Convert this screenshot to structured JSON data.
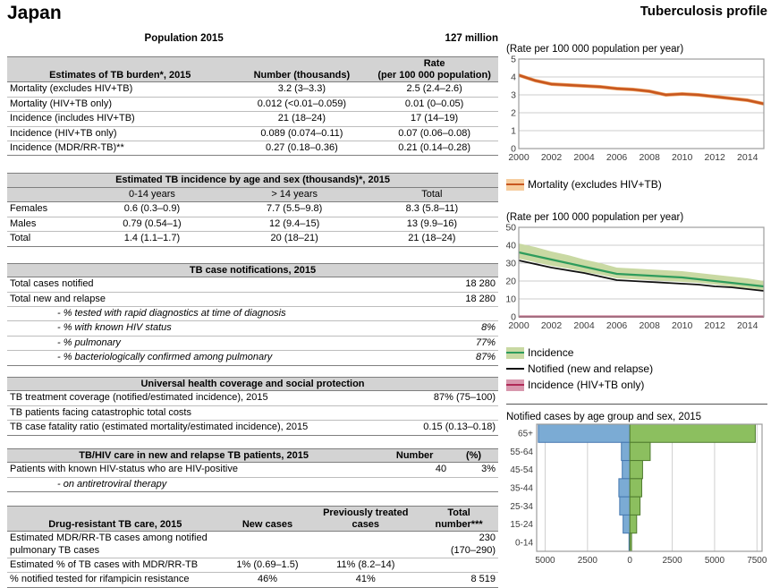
{
  "page": {
    "country": "Japan",
    "profile_title": "Tuberculosis profile",
    "population_label": "Population 2015",
    "population_value": "127 million"
  },
  "tables": {
    "burden": {
      "header": [
        "Estimates of TB burden*, 2015",
        "Number (thousands)",
        "Rate\n(per 100 000 population)"
      ],
      "rows": [
        [
          "Mortality (excludes HIV+TB)",
          "3.2 (3–3.3)",
          "2.5 (2.4–2.6)"
        ],
        [
          "Mortality (HIV+TB only)",
          "0.012 (<0.01–0.059)",
          "0.01 (0–0.05)"
        ],
        [
          "Incidence  (includes HIV+TB)",
          "21 (18–24)",
          "17 (14–19)"
        ],
        [
          "Incidence (HIV+TB only)",
          "0.089 (0.074–0.11)",
          "0.07 (0.06–0.08)"
        ],
        [
          "Incidence (MDR/RR-TB)**",
          "0.27 (0.18–0.36)",
          "0.21 (0.14–0.28)"
        ]
      ]
    },
    "age_sex": {
      "title": "Estimated TB incidence by age and sex (thousands)*, 2015",
      "cols": [
        "",
        "0-14 years",
        "> 14 years",
        "Total"
      ],
      "rows": [
        [
          "Females",
          "0.6 (0.3–0.9)",
          "7.7 (5.5–9.8)",
          "8.3 (5.8–11)"
        ],
        [
          "Males",
          "0.79 (0.54–1)",
          "12 (9.4–15)",
          "13 (9.9–16)"
        ],
        [
          "Total",
          "1.4 (1.1–1.7)",
          "20 (18–21)",
          "21 (18–24)"
        ]
      ]
    },
    "notifications": {
      "title": "TB case notifications, 2015",
      "rows": [
        {
          "label": "Total cases notified",
          "value": "18 280"
        },
        {
          "label": "Total new and relapse",
          "value": "18 280"
        },
        {
          "label": "- % tested with rapid diagnostics at time of diagnosis",
          "value": ""
        },
        {
          "label": "- % with known HIV status",
          "value": "8%"
        },
        {
          "label": "- % pulmonary",
          "value": "77%"
        },
        {
          "label": "- % bacteriologically confirmed among pulmonary",
          "value": "87%"
        }
      ]
    },
    "uhc": {
      "title": "Universal health coverage and social protection",
      "rows": [
        {
          "label": "TB treatment coverage (notified/estimated incidence), 2015",
          "value": "87% (75–100)"
        },
        {
          "label": "TB patients facing catastrophic total costs",
          "value": ""
        },
        {
          "label": "TB case fatality ratio (estimated mortality/estimated incidence), 2015",
          "value": "0.15 (0.13–0.18)"
        }
      ]
    },
    "tbhiv": {
      "header": [
        "TB/HIV care in new and relapse TB patients, 2015",
        "Number",
        "(%)"
      ],
      "rows": [
        [
          "Patients with known HIV-status who are HIV-positive",
          "40",
          "3%"
        ],
        [
          "- on antiretroviral therapy",
          "",
          ""
        ]
      ]
    },
    "drtb": {
      "header": [
        "Drug-resistant TB care, 2015",
        "New cases",
        "Previously treated\ncases",
        "Total\nnumber***"
      ],
      "rows": [
        [
          "Estimated MDR/RR-TB cases among notified pulmonary TB cases",
          "",
          "",
          "230\n(170–290)"
        ],
        [
          "Estimated % of TB cases with MDR/RR-TB",
          "1% (0.69–1.5)",
          "11% (8.2–14)",
          ""
        ],
        [
          "% notified tested for rifampicin resistance",
          "46%",
          "41%",
          "8 519"
        ]
      ]
    }
  },
  "chart_data": [
    {
      "id": "mortality_trend",
      "type": "line",
      "title": "(Rate per 100 000 population per year)",
      "x": [
        2000,
        2001,
        2002,
        2003,
        2004,
        2005,
        2006,
        2007,
        2008,
        2009,
        2010,
        2011,
        2012,
        2013,
        2014,
        2015
      ],
      "xticks": [
        2000,
        2002,
        2004,
        2006,
        2008,
        2010,
        2012,
        2014
      ],
      "ylim": [
        0,
        5
      ],
      "yticks": [
        0,
        1,
        2,
        3,
        4,
        5
      ],
      "series": [
        {
          "name": "Mortality (excludes HIV+TB)",
          "color": "#c8571f",
          "width": 2.6,
          "band_color": "#eda263",
          "values": [
            4.1,
            3.8,
            3.6,
            3.55,
            3.5,
            3.45,
            3.35,
            3.3,
            3.2,
            3.0,
            3.05,
            3.0,
            2.9,
            2.8,
            2.7,
            2.5
          ],
          "band_upper": [
            4.2,
            3.9,
            3.7,
            3.65,
            3.6,
            3.55,
            3.45,
            3.4,
            3.3,
            3.1,
            3.15,
            3.1,
            3.0,
            2.9,
            2.8,
            2.6
          ],
          "band_lower": [
            4.0,
            3.7,
            3.5,
            3.45,
            3.4,
            3.35,
            3.25,
            3.2,
            3.1,
            2.9,
            2.95,
            2.9,
            2.8,
            2.7,
            2.6,
            2.4
          ]
        }
      ],
      "legend": [
        {
          "label": "Mortality  (excludes HIV+TB)",
          "swatch": "#f6cd9e",
          "line": "#c8571f"
        }
      ]
    },
    {
      "id": "incidence_trend",
      "type": "line",
      "title": "(Rate per 100 000 population per year)",
      "x": [
        2000,
        2001,
        2002,
        2003,
        2004,
        2005,
        2006,
        2007,
        2008,
        2009,
        2010,
        2011,
        2012,
        2013,
        2014,
        2015
      ],
      "xticks": [
        2000,
        2002,
        2004,
        2006,
        2008,
        2010,
        2012,
        2014
      ],
      "ylim": [
        0,
        50
      ],
      "yticks": [
        0,
        10,
        20,
        30,
        40,
        50
      ],
      "series": [
        {
          "name": "Incidence",
          "color": "#2e9c5c",
          "width": 2.2,
          "band_color": "#c9d9a3",
          "values": [
            36,
            34,
            32,
            30,
            28,
            26,
            24,
            23.5,
            23,
            22.5,
            22,
            21,
            20,
            19,
            18,
            17
          ],
          "band_upper": [
            41,
            39,
            36.5,
            34.5,
            32,
            30,
            27.5,
            27,
            26.5,
            26,
            25.5,
            24.5,
            23.5,
            22.5,
            21.5,
            20
          ],
          "band_lower": [
            32.5,
            30.5,
            28.5,
            27,
            25,
            23.5,
            21.5,
            21,
            20.5,
            20,
            19.5,
            19,
            18,
            17,
            16,
            15
          ]
        },
        {
          "name": "Notified (new and relapse)",
          "color": "#111111",
          "width": 1.8,
          "values": [
            31.5,
            29.5,
            27.5,
            26,
            24.5,
            22.5,
            20.5,
            20,
            19.5,
            19,
            18.5,
            18,
            17,
            16.5,
            15.5,
            14.5
          ]
        },
        {
          "name": "Incidence (HIV+TB only)",
          "color": "#b02a57",
          "width": 2.4,
          "values": [
            0.1,
            0.1,
            0.1,
            0.1,
            0.1,
            0.1,
            0.1,
            0.1,
            0.1,
            0.1,
            0.1,
            0.1,
            0.1,
            0.1,
            0.1,
            0.1
          ]
        }
      ],
      "legend": [
        {
          "label": "Incidence",
          "swatch": "#c9d9a3",
          "line": "#2e9c5c"
        },
        {
          "label": "Notified (new and relapse)",
          "swatch": "transparent",
          "line": "#111111"
        },
        {
          "label": "Incidence (HIV+TB only)",
          "swatch": "#d898ae",
          "line": "#b02a57"
        }
      ]
    },
    {
      "id": "age_sex_pyramid",
      "type": "bar",
      "title": "Notified cases by age group and sex, 2015",
      "age_groups": [
        "65+",
        "55-64",
        "45-54",
        "35-44",
        "25-34",
        "15-24",
        "0-14"
      ],
      "female": [
        5400,
        500,
        450,
        650,
        600,
        400,
        50
      ],
      "male": [
        7400,
        1200,
        750,
        700,
        600,
        400,
        100
      ],
      "xlim": [
        -5500,
        7800
      ],
      "xticks": [
        -5000,
        -2500,
        0,
        2500,
        5000,
        7500
      ],
      "female_color": "#7babd4",
      "female_stroke": "#4678b0",
      "male_color": "#8cbf5f",
      "male_stroke": "#4f7b2f"
    }
  ]
}
